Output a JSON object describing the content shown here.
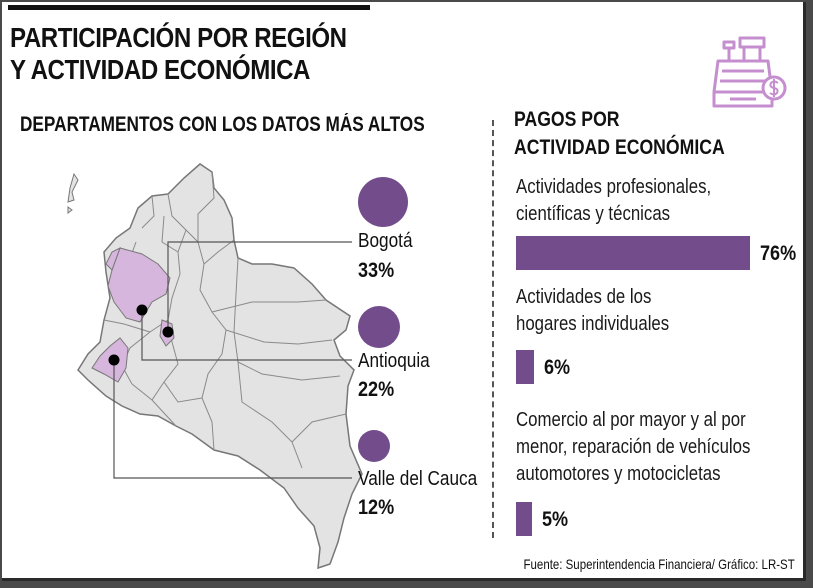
{
  "title_line1": "PARTICIPACIÓN POR REGIÓN",
  "title_line2": "Y ACTIVIDAD ECONÓMICA",
  "left_subtitle": "DEPARTAMENTOS CON LOS DATOS MÁS ALTOS",
  "right_title_line1": "PAGOS POR",
  "right_title_line2": "ACTIVIDAD ECONÓMICA",
  "source": "Fuente: Superintendencia Financiera/ Gráfico: LR-ST",
  "colors": {
    "accent": "#734c8c",
    "map_fill": "#e3e3e3",
    "highlight": "#d6b6dc",
    "icon": "#c58fcf"
  },
  "icon": "cash-register-icon",
  "chart_data": [
    {
      "type": "bar",
      "title": "PAGOS POR ACTIVIDAD ECONÓMICA",
      "categories_lines": [
        [
          "Actividades profesionales,",
          "científicas y técnicas"
        ],
        [
          "Actividades de los",
          "hogares individuales"
        ],
        [
          "Comercio al por mayor y al por",
          "menor, reparación de vehículos",
          "automotores y motocicletas"
        ]
      ],
      "values": [
        76,
        6,
        5
      ],
      "value_labels": [
        "76%",
        "6%",
        "5%"
      ],
      "unit": "%",
      "xlim": [
        0,
        76
      ]
    },
    {
      "type": "bubble",
      "title": "DEPARTAMENTOS CON LOS DATOS MÁS ALTOS",
      "categories": [
        "Bogotá",
        "Antioquia",
        "Valle del Cauca"
      ],
      "values": [
        33,
        22,
        12
      ],
      "value_labels": [
        "33%",
        "22%",
        "12%"
      ],
      "unit": "%"
    }
  ]
}
